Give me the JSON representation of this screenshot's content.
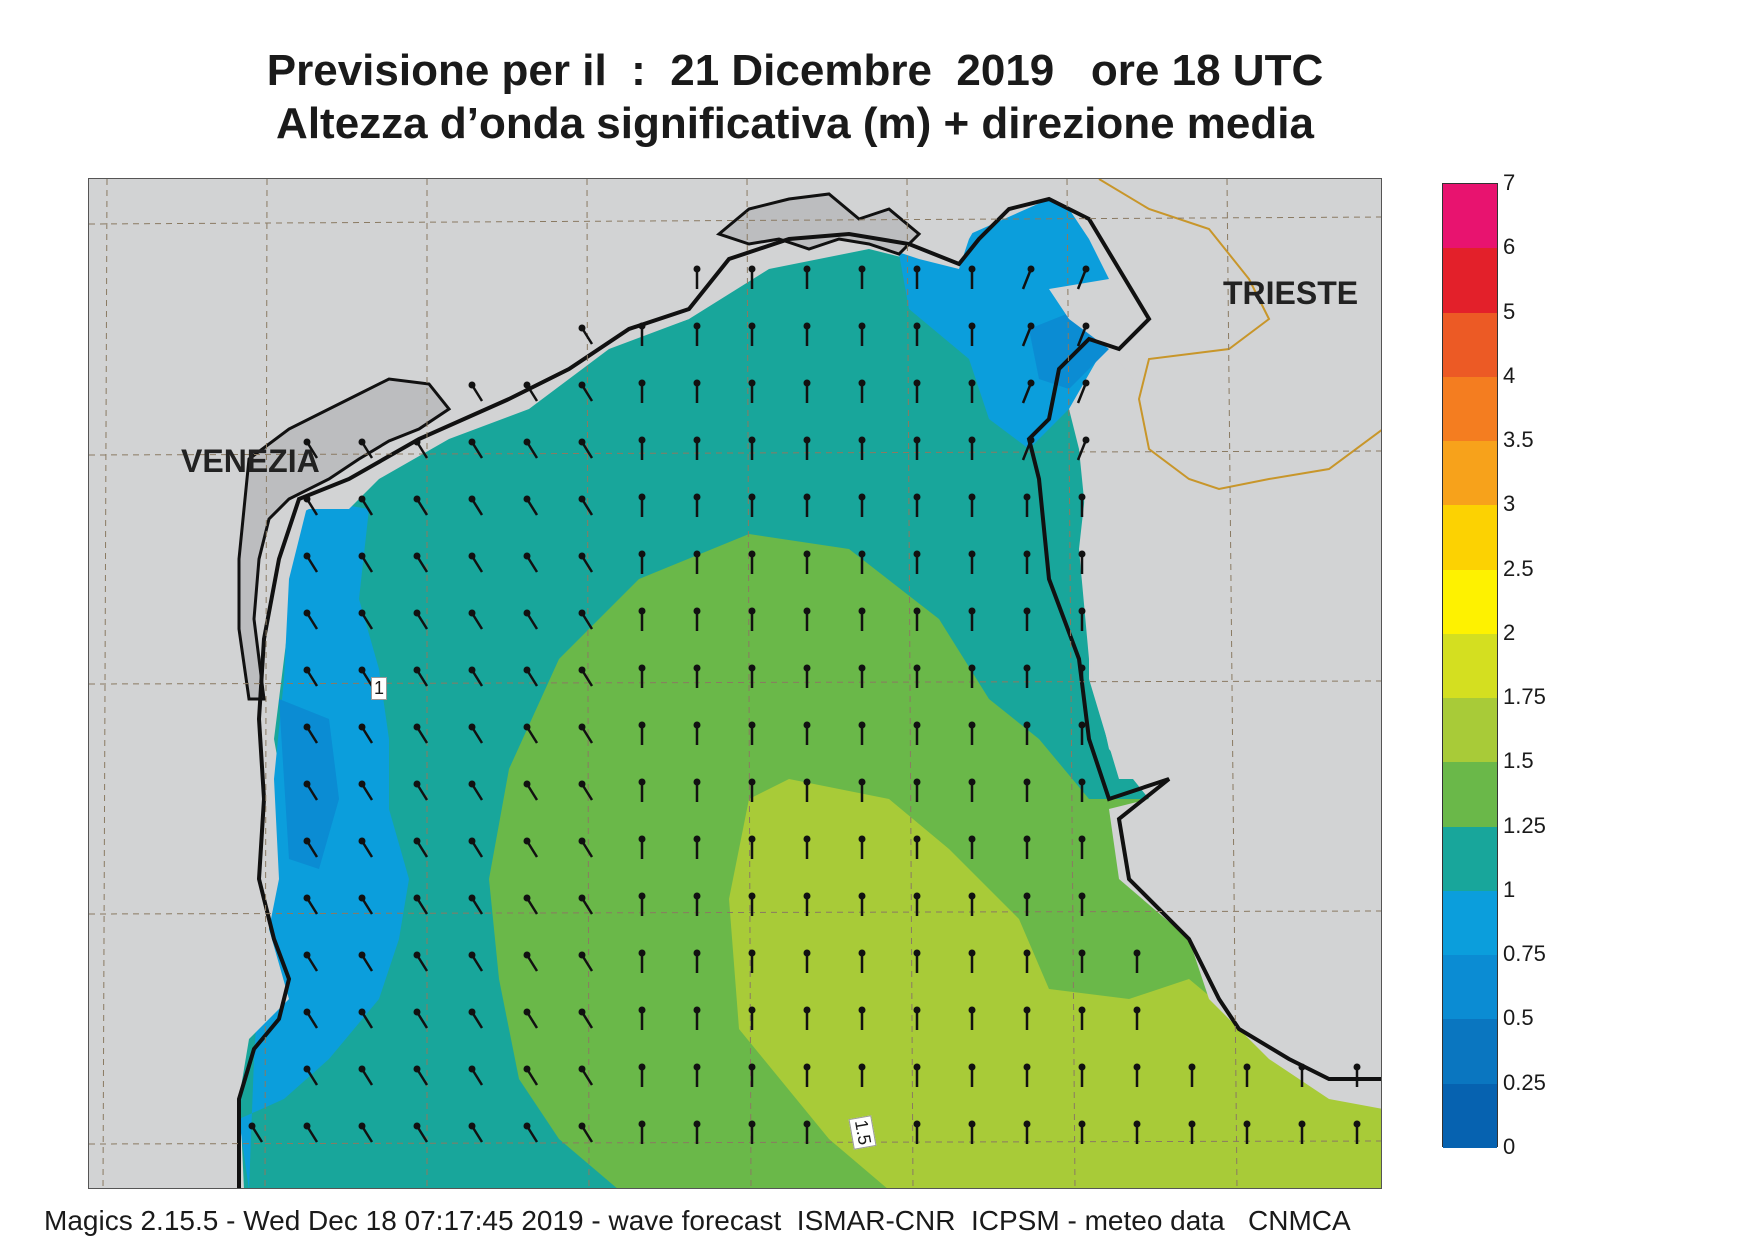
{
  "title_line1": "Previsione per il  :  21 Dicembre  2019   ore 18 UTC",
  "title_line2": "Altezza d’onda significativa (m) + direzione media",
  "cities": [
    {
      "name": "VENEZIA"
    },
    {
      "name": "TRIESTE"
    }
  ],
  "contour_labels": [
    "1",
    "1.5"
  ],
  "legend": {
    "labels": [
      "7",
      "6",
      "5",
      "4",
      "3.5",
      "3",
      "2.5",
      "2",
      "1.75",
      "1.5",
      "1.25",
      "1",
      "0.75",
      "0.5",
      "0.25",
      "0"
    ],
    "colors": [
      "#e8136f",
      "#e3202a",
      "#ec5a25",
      "#f47d20",
      "#f7a21b",
      "#fcd202",
      "#fef200",
      "#d4df20",
      "#a8cb38",
      "#6ab849",
      "#18a69b",
      "#0b9edc",
      "#0b8cd3",
      "#0a76c0",
      "#0662b0"
    ]
  },
  "map_colors": {
    "land": "#d2d3d4",
    "land_dark": "#bcbdbf",
    "c_0_5": "#0a76c0",
    "c_0_75": "#0b8cd3",
    "c_1": "#0b9edc",
    "c_1_25": "#18a69b",
    "c_1_5": "#6ab849",
    "c_1_75": "#a8cb38",
    "border": "#c8962a"
  },
  "footer": "Magics 2.15.5 - Wed Dec 18 07:17:45 2019 - wave forecast  ISMAR-CNR  ICPSM - meteo data   CNMCA"
}
